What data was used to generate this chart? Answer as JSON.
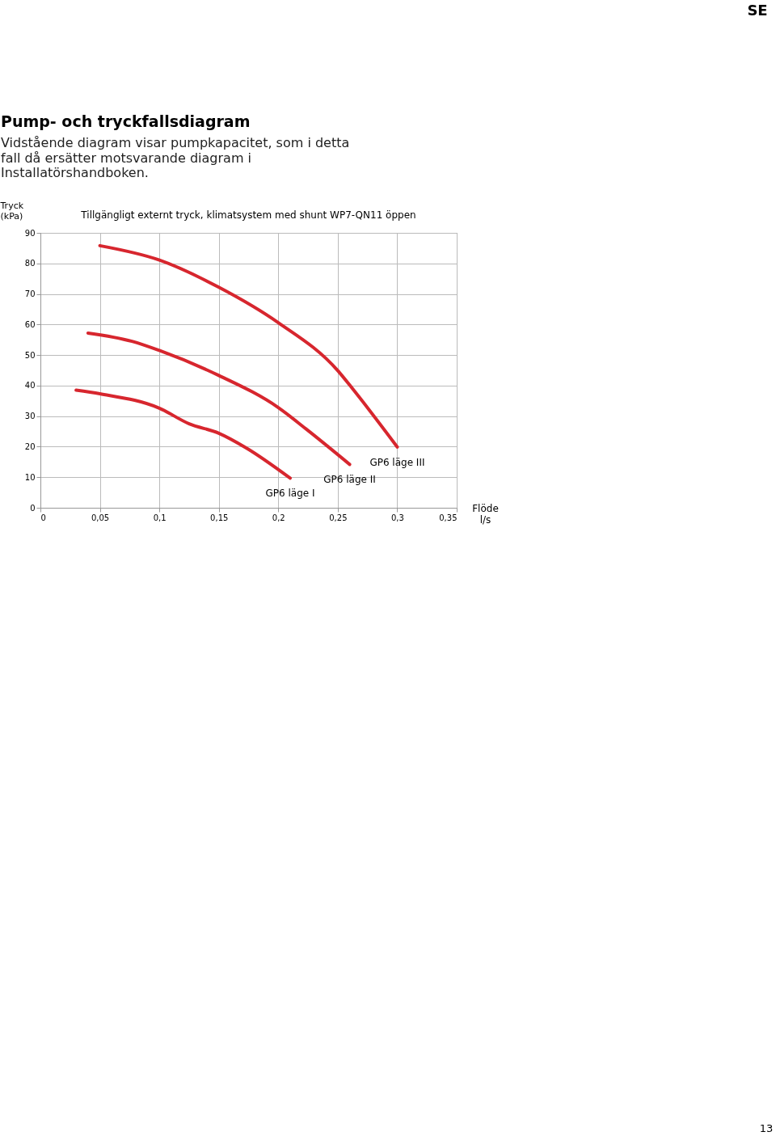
{
  "chart_data": {
    "type": "line",
    "title": "Pump- och tryckfallsdiagram",
    "subtitle": "Vidstående diagram visar pumpkapacitet, som i detta fall då ersätter motsvarande diagram i Installatörshandboken.",
    "annotations": [
      "Tillgängligt externt tryck, klimatsystem med shunt WP7-QN11 öppen",
      "SE",
      "13"
    ],
    "xlabel": "Flöde l/s",
    "ylabel": "Tryck (kPa)",
    "xlim": [
      0,
      0.35
    ],
    "ylim": [
      0,
      90
    ],
    "xticks": [
      0,
      {
        "value": 0.05,
        "label": "0,05"
      },
      {
        "value": 0.1,
        "label": "0,1"
      },
      {
        "value": 0.15,
        "label": "0,15"
      },
      {
        "value": 0.2,
        "label": "0,2"
      },
      {
        "value": 0.25,
        "label": "0,25"
      },
      {
        "value": 0.3,
        "label": "0,3"
      },
      {
        "value": 0.35,
        "label": "0,35"
      }
    ],
    "yticks": [
      0,
      10,
      20,
      30,
      40,
      50,
      60,
      70,
      80,
      90
    ],
    "grid": true,
    "legend": false,
    "marker": "none",
    "line_style": "solid",
    "series": [
      {
        "name": "GP6 läge I",
        "color": "#d7262e",
        "x": [
          0.03,
          0.05,
          0.1,
          0.125,
          0.15,
          0.173,
          0.21
        ],
        "values": [
          38.5,
          37.3,
          32.6,
          27.5,
          24.4,
          19.6,
          9.7
        ]
      },
      {
        "name": "GP6 läge II",
        "color": "#d7262e",
        "x": [
          0.04,
          0.077,
          0.1,
          0.15,
          0.2,
          0.223,
          0.26
        ],
        "values": [
          57.2,
          54.5,
          51.5,
          43.3,
          32.8,
          25.9,
          14.2
        ]
      },
      {
        "name": "GP6 läge III",
        "color": "#d7262e",
        "x": [
          0.05,
          0.1,
          0.15,
          0.2,
          0.25,
          0.263,
          0.3
        ],
        "values": [
          85.8,
          81.1,
          72.2,
          60.6,
          44.9,
          38.7,
          19.9
        ]
      }
    ]
  }
}
